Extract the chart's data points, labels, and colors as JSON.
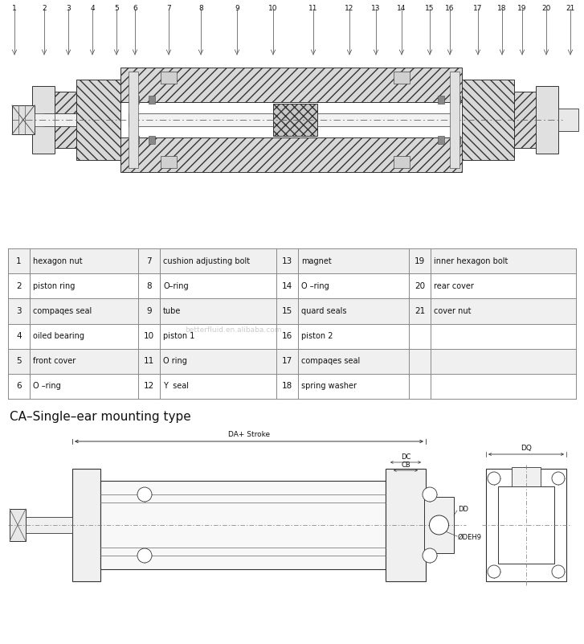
{
  "bg_color": "#ffffff",
  "table_row_bg_odd": "#f0f0f0",
  "table_row_bg_even": "#ffffff",
  "table_border_color": "#888888",
  "line_color": "#333333",
  "watermark_text": "betterfluid.en.alibaba.com",
  "section_title": "CA–Single–ear mounting type",
  "table_data": [
    [
      "1",
      "hexagon nut",
      "7",
      "cushion adjusting bolt",
      "13",
      "magnet",
      "19",
      "inner hexagon bolt"
    ],
    [
      "2",
      "piston ring",
      "8",
      "O–ring",
      "14",
      "O –ring",
      "20",
      "rear cover"
    ],
    [
      "3",
      "compaqes seal",
      "9",
      "tube",
      "15",
      "quard seals",
      "21",
      "cover nut"
    ],
    [
      "4",
      "oiled bearing",
      "10",
      "piston 1",
      "16",
      "piston 2",
      "",
      ""
    ],
    [
      "5",
      "front cover",
      "11",
      "O ring",
      "17",
      "compaqes seal",
      "",
      ""
    ],
    [
      "6",
      "O –ring",
      "12",
      "Y  seal",
      "18",
      "spring washer",
      "",
      ""
    ]
  ],
  "dim_labels": {
    "da_stroke": "DA+ Stroke",
    "dc": "DC",
    "cb": "CB",
    "dd": "DD",
    "deh9": "ØDEH9",
    "dq": "DQ"
  },
  "part_numbers_top": [
    "1",
    "2",
    "3",
    "4",
    "5",
    "6",
    "7",
    "8",
    "9",
    "10",
    "11",
    "12",
    "13",
    "14",
    "15",
    "16",
    "17",
    "18",
    "19",
    "20",
    "21"
  ]
}
